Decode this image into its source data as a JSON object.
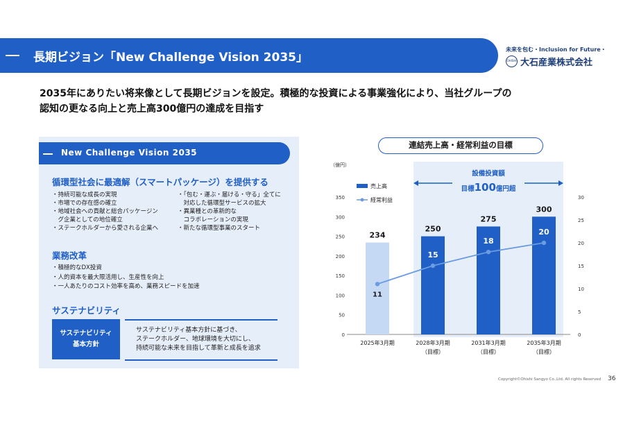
{
  "header": {
    "title": "長期ビジョン「New Challenge Vision 2035」"
  },
  "logo": {
    "tagline": "未来を包む・Inclusion for Future・",
    "mark": "OHISHI",
    "company": "大石産業株式会社"
  },
  "lead": {
    "line1": "2035年にありたい将来像として長期ビジョンを設定。積極的な投資による事業強化により、当社グループの",
    "line2": "認知の更なる向上と売上高300億円の達成を目指す"
  },
  "vision": {
    "title": "New Challenge Vision 2035",
    "section1": {
      "title": "循環型社会に最適解（スマートパッケージ）を提供する",
      "col1": [
        "・持続可能な成長の実現",
        "・市場での存在感の確立",
        "・地域社会への貢献と総合パッケージン",
        "　グ企業としての地位確立",
        "・ステークホルダーから愛される企業へ"
      ],
      "col2": [
        "・「包む・運ぶ・届ける・守る」全てに",
        "　対応した循環型サービスの拡大",
        "・異業種との革新的な",
        "　コラボレーションの実現",
        "・新たな循環型事業のスタート"
      ]
    },
    "section2": {
      "title": "業務改革",
      "items": [
        "・積極的なDX投資",
        "・人的資本を最大限活用し、生産性を向上",
        "・一人あたりのコスト効率を高め、業務スピードを加速"
      ]
    },
    "section3": {
      "title": "サステナビリティ",
      "box_line1": "サステナビリティ",
      "box_line2": "基本方針",
      "text": [
        "サステナビリティ基本方針に基づき、",
        "ステークホルダー、地球環境を大切にし、",
        "持続可能な未来を目指して革新と成長を追求"
      ]
    }
  },
  "chart_title": "連結売上高・経常利益の目標",
  "chart_data": {
    "type": "bar",
    "unit_label": "（億円）",
    "categories": [
      "2025年3月期",
      "2028年3月期",
      "2031年3月期",
      "2035年3月期"
    ],
    "category_sublabels": [
      "",
      "（目標）",
      "（目標）",
      "（目標）"
    ],
    "series": [
      {
        "name": "売上高",
        "type": "bar",
        "axis": "left",
        "values": [
          234,
          250,
          275,
          300
        ],
        "colors": [
          "#c5d9f5",
          "#1f5fc6",
          "#1f5fc6",
          "#1f5fc6"
        ]
      },
      {
        "name": "経常利益",
        "type": "line",
        "axis": "right",
        "values": [
          11,
          15,
          18,
          20
        ],
        "color": "#6b9be0"
      }
    ],
    "ylim_left": [
      0,
      350
    ],
    "yticks_left": [
      0,
      50,
      100,
      150,
      200,
      250,
      300,
      350
    ],
    "ylim_right": [
      0,
      30
    ],
    "yticks_right": [
      0,
      5,
      10,
      15,
      20,
      25,
      30
    ],
    "annotation": {
      "line1": "設備投資額",
      "prefix": "目標",
      "value": "100",
      "suffix": "億円超"
    }
  },
  "footer": {
    "copyright": "Copyright©Ohishi Sangyo Co.,Ltd. All rights Reserved",
    "page": "36"
  }
}
